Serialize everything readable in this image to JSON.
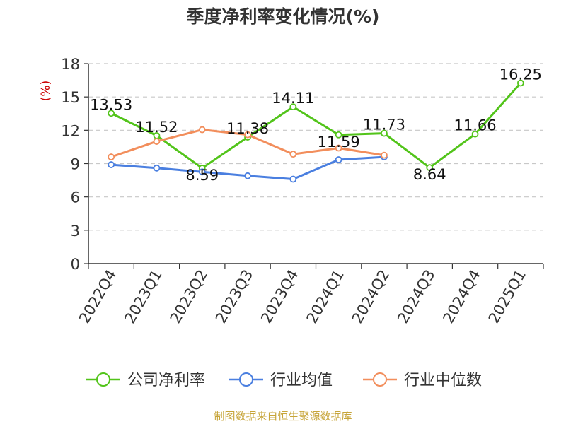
{
  "chart_data": {
    "type": "line",
    "title": "季度净利率变化情况(%)",
    "ylabel": "(%)",
    "xlabel": "",
    "categories": [
      "2022Q4",
      "2023Q1",
      "2023Q2",
      "2023Q3",
      "2023Q4",
      "2024Q1",
      "2024Q2",
      "2024Q3",
      "2024Q4",
      "2025Q1"
    ],
    "ylim": [
      0,
      18
    ],
    "yticks": [
      0,
      3,
      6,
      9,
      12,
      15,
      18
    ],
    "grid": true,
    "legend_position": "bottom",
    "series": [
      {
        "name": "公司净利率",
        "color": "#52c41a",
        "show_labels": true,
        "values": [
          13.53,
          11.52,
          8.59,
          11.38,
          14.11,
          11.59,
          11.73,
          8.64,
          11.66,
          16.25
        ],
        "labels": [
          "13.53",
          "11.52",
          "8.59",
          "11.38",
          "14.11",
          "11.59",
          "11.73",
          "8.64",
          "11.66",
          "16.25"
        ]
      },
      {
        "name": "行业均值",
        "color": "#4a7fe0",
        "show_labels": false,
        "values": [
          8.9,
          8.6,
          8.25,
          7.9,
          7.6,
          9.35,
          9.6,
          null,
          null,
          null
        ]
      },
      {
        "name": "行业中位数",
        "color": "#f28e5c",
        "show_labels": false,
        "values": [
          9.6,
          11.0,
          12.05,
          11.6,
          9.85,
          10.4,
          9.75,
          null,
          null,
          null
        ]
      }
    ]
  },
  "source_note": "制图数据来自恒生聚源数据库"
}
